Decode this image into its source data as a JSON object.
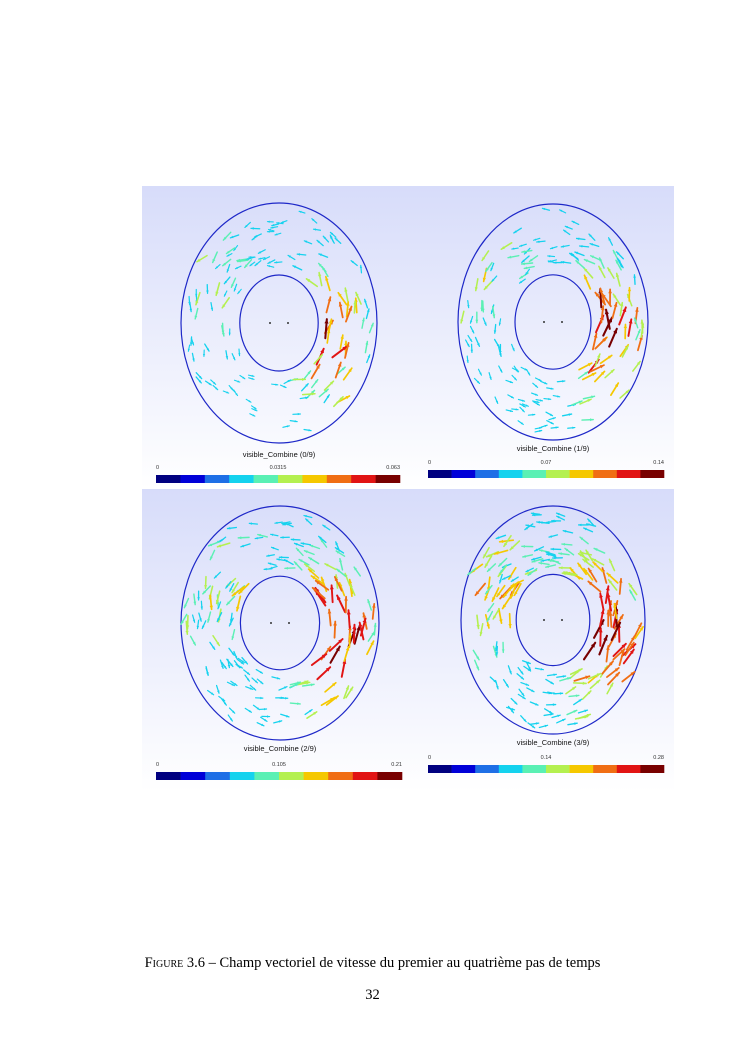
{
  "figure": {
    "panels": [
      {
        "title": "visible_Combine (0/9)",
        "ticks": [
          "0",
          "0.0315",
          "0.063"
        ],
        "max": 0.063
      },
      {
        "title": "visible_Combine (1/9)",
        "ticks": [
          "0",
          "0.07",
          "0.14"
        ],
        "max": 0.14
      },
      {
        "title": "visible_Combine (2/9)",
        "ticks": [
          "0",
          "0.105",
          "0.21"
        ],
        "max": 0.21
      },
      {
        "title": "visible_Combine (3/9)",
        "ticks": [
          "0",
          "0.14",
          "0.28"
        ],
        "max": 0.28
      }
    ],
    "colormap": [
      "#000080",
      "#0000d8",
      "#1e6fe6",
      "#14d2ee",
      "#5af0b4",
      "#b4f050",
      "#f5c800",
      "#f06e14",
      "#e11414",
      "#780000"
    ],
    "background_top": "#d7dcfa",
    "background_bottom": "#ffffff",
    "boundary_color": "#1e28c8"
  },
  "caption": {
    "label": "Figure",
    "number": "3.6",
    "text": "– Champ vectoriel de vitesse du premier au quatrième pas de temps"
  },
  "page_number": "32"
}
